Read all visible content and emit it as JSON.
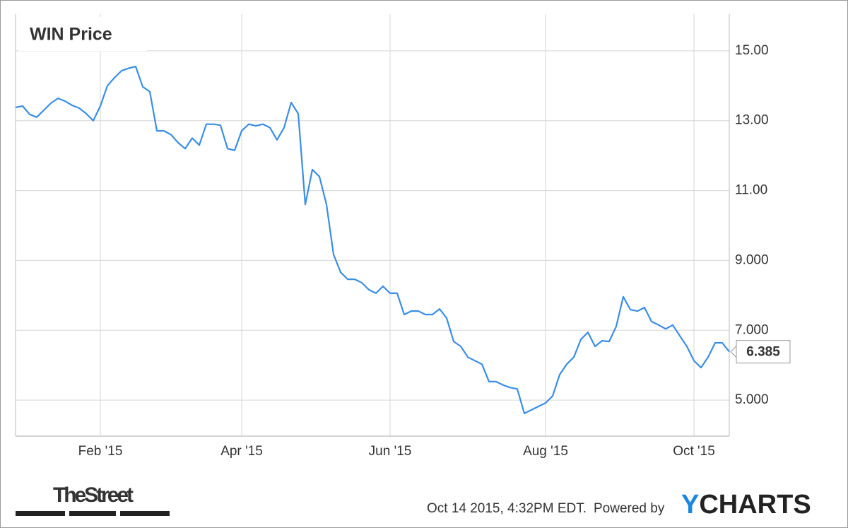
{
  "chart_data": {
    "type": "line",
    "title": "WIN Price",
    "categories": [
      null,
      null,
      null,
      null,
      null,
      null,
      null,
      null,
      null,
      null,
      null,
      null,
      "Feb '15",
      null,
      null,
      null,
      null,
      null,
      null,
      null,
      null,
      null,
      null,
      null,
      null,
      null,
      null,
      null,
      null,
      null,
      null,
      null,
      "Apr '15",
      null,
      null,
      null,
      null,
      null,
      null,
      null,
      null,
      null,
      null,
      null,
      null,
      null,
      null,
      null,
      null,
      null,
      null,
      null,
      null,
      "Jun '15",
      null,
      null,
      null,
      null,
      null,
      null,
      null,
      null,
      null,
      null,
      null,
      null,
      null,
      null,
      null,
      null,
      null,
      null,
      null,
      null,
      null,
      "Aug '15",
      null,
      null,
      null,
      null,
      null,
      null,
      null,
      null,
      null,
      null,
      null,
      null,
      null,
      null,
      null,
      null,
      null,
      null,
      null,
      null,
      "Oct '15",
      null,
      null,
      null,
      null,
      null
    ],
    "series": [
      {
        "name": "WIN Price",
        "color": "#3a8ee6",
        "values": [
          13.38,
          13.42,
          13.18,
          13.1,
          13.3,
          13.5,
          13.64,
          13.56,
          13.44,
          13.36,
          13.2,
          13.0,
          13.42,
          14.0,
          14.23,
          14.43,
          14.5,
          14.55,
          13.97,
          13.83,
          12.71,
          12.71,
          12.6,
          12.37,
          12.2,
          12.5,
          12.3,
          12.9,
          12.9,
          12.87,
          12.2,
          12.15,
          12.71,
          12.9,
          12.85,
          12.9,
          12.8,
          12.45,
          12.8,
          13.52,
          13.2,
          10.6,
          11.6,
          11.4,
          10.6,
          9.17,
          8.66,
          8.46,
          8.46,
          8.36,
          8.16,
          8.06,
          8.26,
          8.06,
          8.06,
          7.45,
          7.55,
          7.55,
          7.45,
          7.45,
          7.61,
          7.35,
          6.68,
          6.54,
          6.23,
          6.13,
          6.03,
          5.53,
          5.53,
          5.43,
          5.36,
          5.32,
          4.62,
          4.72,
          4.82,
          4.92,
          5.12,
          5.73,
          6.03,
          6.23,
          6.74,
          6.94,
          6.54,
          6.7,
          6.68,
          7.11,
          7.96,
          7.59,
          7.55,
          7.65,
          7.25,
          7.15,
          7.04,
          7.15,
          6.84,
          6.54,
          6.13,
          5.93,
          6.23,
          6.64,
          6.64,
          6.385
        ]
      }
    ],
    "ylim": [
      3.97,
      16.05
    ],
    "yticks": [
      {
        "value": 5,
        "label": "5.000"
      },
      {
        "value": 7,
        "label": "7.000"
      },
      {
        "value": 9,
        "label": "9.000"
      },
      {
        "value": 11,
        "label": "11.00"
      },
      {
        "value": 13,
        "label": "13.00"
      },
      {
        "value": 15,
        "label": "15.00"
      }
    ],
    "grid": true,
    "y_axis_side": "right"
  },
  "footer": {
    "logo": "TheStreet",
    "timestamp": "Oct 14 2015, 4:32PM EDT.",
    "powered_by": "Powered by",
    "brand_first": "Y",
    "brand_rest": "CHARTS"
  }
}
